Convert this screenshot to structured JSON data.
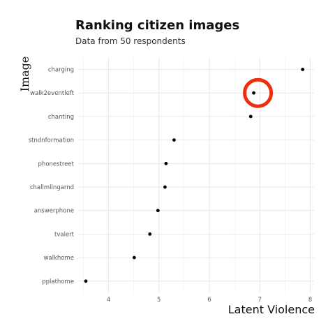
{
  "chart_data": {
    "type": "scatter",
    "title": "Ranking citizen images",
    "subtitle": "Data from 50 respondents",
    "xlabel": "Latent Violence",
    "ylabel": "Image",
    "xlim": [
      3.5,
      8.05
    ],
    "xticks": [
      4,
      5,
      6,
      7,
      8
    ],
    "grid": true,
    "categories": [
      "charging",
      "walk2eventleft",
      "chanting",
      "stndnformation",
      "phonestreet",
      "challmllngarnd",
      "answerphone",
      "tvalert",
      "walkhome",
      "pplathome"
    ],
    "values": [
      7.85,
      6.88,
      6.82,
      5.3,
      5.14,
      5.12,
      4.98,
      4.82,
      4.51,
      3.55
    ],
    "highlighted": "walk2eventleft",
    "highlight_color": "#ee2e10",
    "point_color": "#000000"
  }
}
